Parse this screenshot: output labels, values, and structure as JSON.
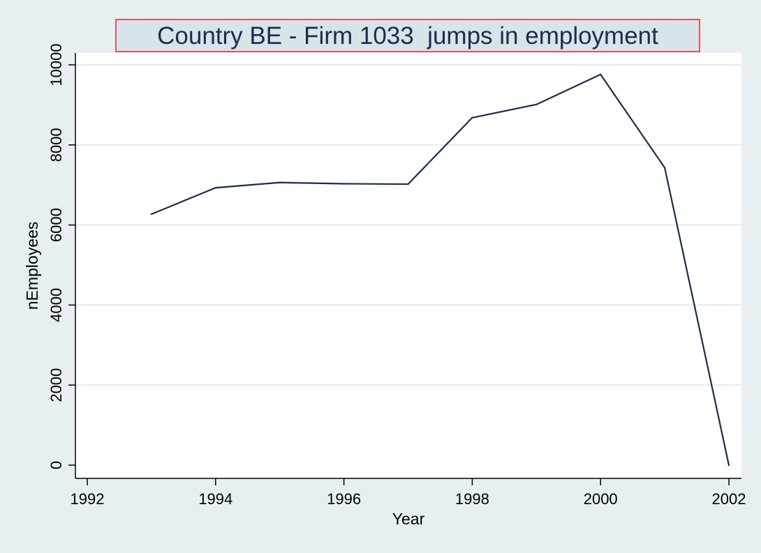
{
  "chart_data": {
    "type": "line",
    "title": "Country BE - Firm 1033  jumps in employment",
    "xlabel": "Year",
    "ylabel": "nEmployees",
    "xlim": [
      1992,
      2002
    ],
    "ylim": [
      0,
      10000
    ],
    "x_ticks": [
      1992,
      1994,
      1996,
      1998,
      2000,
      2002
    ],
    "y_ticks": [
      0,
      2000,
      4000,
      6000,
      8000,
      10000
    ],
    "grid": "horizontal",
    "legend": "none",
    "series": [
      {
        "x": [
          1993,
          1994,
          1995,
          1996,
          1997,
          1998,
          1999,
          2000,
          2001,
          2002
        ],
        "values": [
          6270,
          6930,
          7060,
          7030,
          7020,
          8680,
          9010,
          9760,
          7430,
          0
        ],
        "color": "#1a2e4a"
      }
    ],
    "colors": {
      "background": "#e8eff2",
      "plot_background": "#ffffff",
      "title_box": "#d9e3ea",
      "title_border": "#e0262b",
      "gridline": "#e3ebef",
      "axis": "#000000",
      "line": "#1a2e4a"
    }
  }
}
